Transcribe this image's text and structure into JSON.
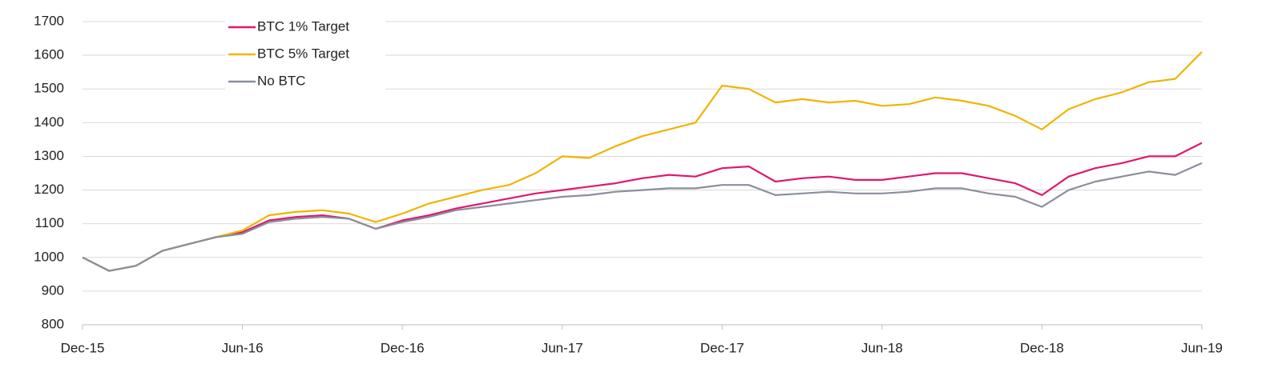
{
  "chart_data": {
    "type": "line",
    "categories": [
      "Dec-15",
      null,
      null,
      null,
      null,
      null,
      "Jun-16",
      null,
      null,
      null,
      null,
      null,
      "Dec-16",
      null,
      null,
      null,
      null,
      null,
      "Jun-17",
      null,
      null,
      null,
      null,
      null,
      "Dec-17",
      null,
      null,
      null,
      null,
      null,
      "Jun-18",
      null,
      null,
      null,
      null,
      null,
      "Dec-18",
      null,
      null,
      null,
      null,
      null,
      "Jun-19"
    ],
    "series": [
      {
        "name": "BTC 1% Target",
        "color": "#e0186c",
        "values": [
          1000,
          960,
          975,
          1020,
          1040,
          1060,
          1075,
          1110,
          1120,
          1125,
          1115,
          1085,
          1110,
          1125,
          1145,
          1160,
          1175,
          1190,
          1200,
          1210,
          1220,
          1235,
          1245,
          1240,
          1265,
          1270,
          1225,
          1235,
          1240,
          1230,
          1230,
          1240,
          1250,
          1250,
          1235,
          1220,
          1185,
          1240,
          1265,
          1280,
          1300,
          1300,
          1340
        ]
      },
      {
        "name": "BTC 5% Target",
        "color": "#f0b400",
        "values": [
          1000,
          960,
          975,
          1020,
          1040,
          1060,
          1080,
          1125,
          1135,
          1140,
          1130,
          1105,
          1130,
          1160,
          1180,
          1200,
          1215,
          1250,
          1300,
          1295,
          1330,
          1360,
          1380,
          1400,
          1510,
          1500,
          1460,
          1470,
          1460,
          1465,
          1450,
          1455,
          1475,
          1465,
          1450,
          1420,
          1380,
          1440,
          1470,
          1490,
          1520,
          1530,
          1610
        ]
      },
      {
        "name": "No BTC",
        "color": "#8a8f9c",
        "values": [
          1000,
          960,
          975,
          1020,
          1040,
          1060,
          1070,
          1105,
          1115,
          1120,
          1115,
          1085,
          1105,
          1120,
          1140,
          1150,
          1160,
          1170,
          1180,
          1185,
          1195,
          1200,
          1205,
          1205,
          1215,
          1215,
          1185,
          1190,
          1195,
          1190,
          1190,
          1195,
          1205,
          1205,
          1190,
          1180,
          1150,
          1200,
          1225,
          1240,
          1255,
          1245,
          1280
        ]
      }
    ],
    "ylim": [
      800,
      1700
    ],
    "yticks": [
      800,
      900,
      1000,
      1100,
      1200,
      1300,
      1400,
      1500,
      1600,
      1700
    ],
    "grid": true,
    "legend": "upper left"
  }
}
